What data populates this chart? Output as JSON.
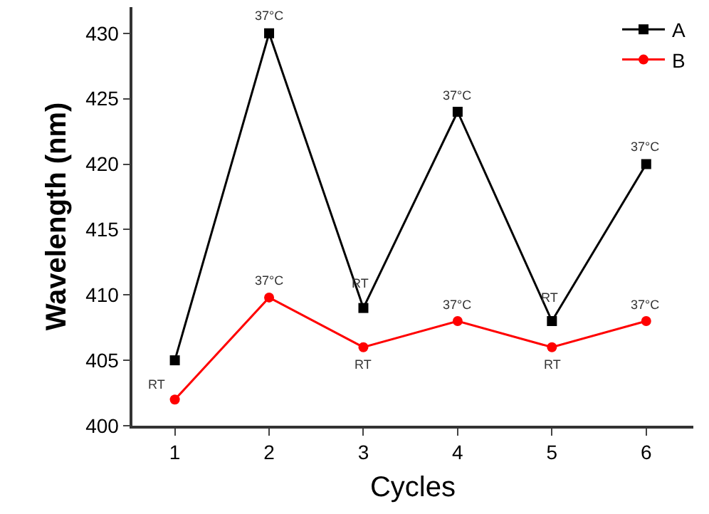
{
  "chart_data": {
    "type": "line",
    "xlabel": "Cycles",
    "ylabel": "Wavelength (nm)",
    "x": [
      1,
      2,
      3,
      4,
      5,
      6
    ],
    "series": [
      {
        "name": "A",
        "color": "#000000",
        "values": [
          405,
          430,
          409,
          424,
          408,
          420
        ],
        "marker": "square"
      },
      {
        "name": "B",
        "color": "#ff0000",
        "values": [
          402,
          409.8,
          406,
          408,
          406,
          408
        ],
        "marker": "circle"
      }
    ],
    "xlim": [
      0.55,
      6.5
    ],
    "xticks": [
      1,
      2,
      3,
      4,
      5,
      6
    ],
    "ylim": [
      400,
      432
    ],
    "yticks": [
      400,
      405,
      410,
      415,
      420,
      425,
      430
    ],
    "legend": "top right",
    "line_style": "solid",
    "annotations": [
      {
        "text": "37°C",
        "x": 2,
        "y": 430
      },
      {
        "text": "RT",
        "x": 3,
        "y": 409
      },
      {
        "text": "37°C",
        "x": 4,
        "y": 424
      },
      {
        "text": "RT",
        "x": 5,
        "y": 408
      },
      {
        "text": "37°C",
        "x": 6,
        "y": 420
      },
      {
        "text": "RT",
        "x": 1,
        "y": 402
      },
      {
        "text": "37°C",
        "x": 2,
        "y": 409.8
      },
      {
        "text": "RT",
        "x": 3,
        "y": 406
      },
      {
        "text": "37°C",
        "x": 4,
        "y": 408
      },
      {
        "text": "RT",
        "x": 5,
        "y": 406
      },
      {
        "text": "37°C",
        "x": 6,
        "y": 408
      }
    ]
  }
}
